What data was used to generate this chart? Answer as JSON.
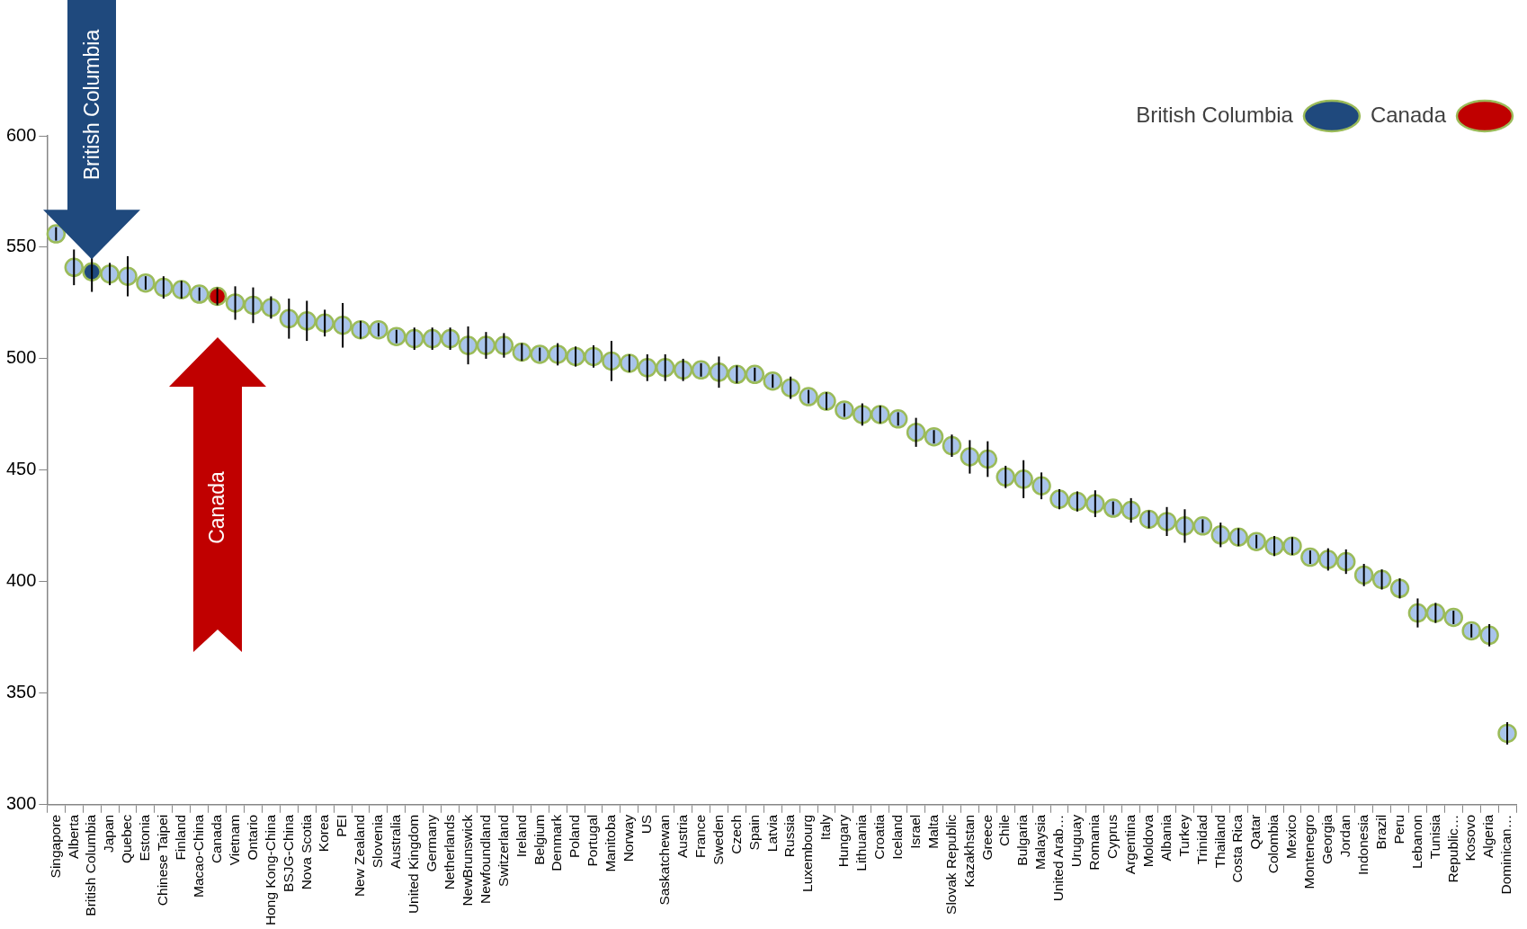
{
  "chart_data": {
    "type": "scatter",
    "categories": [
      "Singapore",
      "Alberta",
      "British Columbia",
      "Japan",
      "Quebec",
      "Estonia",
      "Chinese Taipei",
      "Finland",
      "Macao-China",
      "Canada",
      "Vietnam",
      "Ontario",
      "Hong Kong-China",
      "BSJG-China",
      "Nova Scotia",
      "Korea",
      "PEI",
      "New Zealand",
      "Slovenia",
      "Australia",
      "United Kingdom",
      "Germany",
      "Netherlands",
      "NewBrunswick",
      "Newfoundland",
      "Switzerland",
      "Ireland",
      "Belgium",
      "Denmark",
      "Poland",
      "Portugal",
      "Manitoba",
      "Norway",
      "US",
      "Saskatchewan",
      "Austria",
      "France",
      "Sweden",
      "Czech",
      "Spain",
      "Latvia",
      "Russia",
      "Luxembourg",
      "Italy",
      "Hungary",
      "Lithuania",
      "Croatia",
      "Iceland",
      "Israel",
      "Malta",
      "Slovak Republic",
      "Kazakhstan",
      "Greece",
      "Chile",
      "Bulgaria",
      "Malaysia",
      "United Arab…",
      "Uruguay",
      "Romania",
      "Cyprus",
      "Argentina",
      "Moldova",
      "Albania",
      "Turkey",
      "Trinidad",
      "Thailand",
      "Costa Rica",
      "Qatar",
      "Colombia",
      "Mexico",
      "Montenegro",
      "Georgia",
      "Jordan",
      "Indonesia",
      "Brazil",
      "Peru",
      "Lebanon",
      "Tunisia",
      "Republic…",
      "Kosovo",
      "Algeria",
      "Dominican…"
    ],
    "series": [
      {
        "color": "#a9c4eb",
        "values": [
          556,
          541,
          null,
          538,
          537,
          534,
          532,
          531,
          529,
          null,
          525,
          524,
          523,
          518,
          517,
          516,
          515,
          513,
          513,
          510,
          509,
          509,
          509,
          506,
          506,
          506,
          503,
          502,
          502,
          501,
          501,
          499,
          498,
          496,
          496,
          495,
          495,
          494,
          493,
          493,
          490,
          487,
          483,
          481,
          477,
          475,
          475,
          473,
          467,
          465,
          461,
          456,
          455,
          447,
          446,
          443,
          437,
          436,
          435,
          433,
          432,
          428,
          427,
          425,
          425,
          421,
          420,
          418,
          416,
          416,
          411,
          410,
          409,
          403,
          401,
          397,
          386,
          386,
          384,
          378,
          376,
          332
        ],
        "errors": [
          3,
          8,
          null,
          5,
          9,
          3,
          5,
          4,
          3,
          null,
          7.5,
          8,
          5,
          9,
          9,
          6,
          10,
          4,
          3,
          3,
          5,
          5,
          5,
          8.5,
          6,
          5.5,
          4,
          3,
          5,
          4.5,
          5,
          9,
          4,
          6,
          6,
          5,
          3,
          7,
          4,
          3,
          3,
          5,
          3,
          4,
          3,
          5,
          4,
          3,
          6.5,
          3,
          5,
          7.5,
          8,
          5,
          8.5,
          6,
          4.5,
          4.5,
          6,
          3,
          5.5,
          4,
          6.5,
          7.5,
          3,
          5.5,
          4,
          3,
          4.5,
          4,
          3,
          5,
          5.5,
          5,
          4.5,
          4.5,
          6.5,
          4.5,
          3,
          3,
          5,
          5
        ]
      },
      {
        "name": "British Columbia",
        "color": "#1f497d",
        "values": [
          null,
          null,
          539,
          null,
          null,
          null,
          null,
          null,
          null,
          null,
          null,
          null,
          null,
          null,
          null,
          null,
          null,
          null,
          null,
          null,
          null,
          null,
          null,
          null,
          null,
          null,
          null,
          null,
          null,
          null,
          null,
          null,
          null,
          null,
          null,
          null,
          null,
          null,
          null,
          null,
          null,
          null,
          null,
          null,
          null,
          null,
          null,
          null,
          null,
          null,
          null,
          null,
          null,
          null,
          null,
          null,
          null,
          null,
          null,
          null,
          null,
          null,
          null,
          null,
          null,
          null,
          null,
          null,
          null,
          null,
          null,
          null,
          null,
          null,
          null,
          null,
          null,
          null,
          null,
          null,
          null,
          null
        ],
        "errors": [
          null,
          null,
          9,
          null,
          null,
          null,
          null,
          null,
          null,
          null,
          null,
          null,
          null,
          null,
          null,
          null,
          null,
          null,
          null,
          null,
          null,
          null,
          null,
          null,
          null,
          null,
          null,
          null,
          null,
          null,
          null,
          null,
          null,
          null,
          null,
          null,
          null,
          null,
          null,
          null,
          null,
          null,
          null,
          null,
          null,
          null,
          null,
          null,
          null,
          null,
          null,
          null,
          null,
          null,
          null,
          null,
          null,
          null,
          null,
          null,
          null,
          null,
          null,
          null,
          null,
          null,
          null,
          null,
          null,
          null,
          null,
          null,
          null,
          null,
          null,
          null,
          null,
          null,
          null,
          null,
          null,
          null
        ]
      },
      {
        "name": "Canada",
        "color": "#c00000",
        "values": [
          null,
          null,
          null,
          null,
          null,
          null,
          null,
          null,
          null,
          528,
          null,
          null,
          null,
          null,
          null,
          null,
          null,
          null,
          null,
          null,
          null,
          null,
          null,
          null,
          null,
          null,
          null,
          null,
          null,
          null,
          null,
          null,
          null,
          null,
          null,
          null,
          null,
          null,
          null,
          null,
          null,
          null,
          null,
          null,
          null,
          null,
          null,
          null,
          null,
          null,
          null,
          null,
          null,
          null,
          null,
          null,
          null,
          null,
          null,
          null,
          null,
          null,
          null,
          null,
          null,
          null,
          null,
          null,
          null,
          null,
          null,
          null,
          null,
          null,
          null,
          null,
          null,
          null,
          null,
          null,
          null,
          null
        ],
        "errors": [
          null,
          null,
          null,
          null,
          null,
          null,
          null,
          null,
          null,
          4,
          null,
          null,
          null,
          null,
          null,
          null,
          null,
          null,
          null,
          null,
          null,
          null,
          null,
          null,
          null,
          null,
          null,
          null,
          null,
          null,
          null,
          null,
          null,
          null,
          null,
          null,
          null,
          null,
          null,
          null,
          null,
          null,
          null,
          null,
          null,
          null,
          null,
          null,
          null,
          null,
          null,
          null,
          null,
          null,
          null,
          null,
          null,
          null,
          null,
          null,
          null,
          null,
          null,
          null,
          null,
          null,
          null,
          null,
          null,
          null,
          null,
          null,
          null,
          null,
          null,
          null,
          null,
          null,
          null,
          null,
          null,
          null
        ]
      }
    ],
    "ylim": [
      300,
      600
    ],
    "yticks": [
      300,
      350,
      400,
      450,
      500,
      550,
      600
    ],
    "marker": "circle",
    "legend": "top right",
    "annotations": [
      "British Columbia",
      "Canada"
    ]
  }
}
